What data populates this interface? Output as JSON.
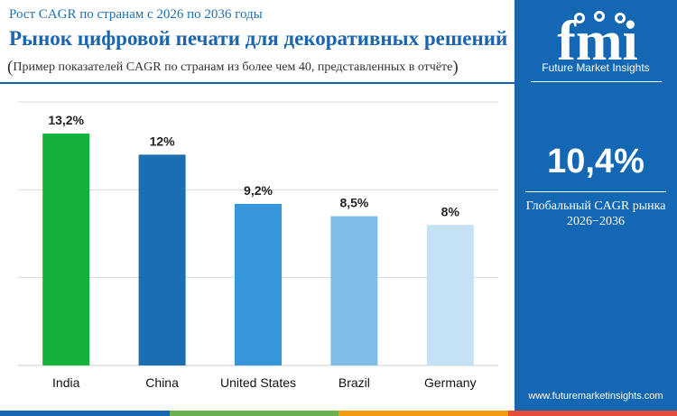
{
  "header": {
    "subtitle": "Рост CAGR по странам с 2026 по 2036 годы",
    "title": "Рынок цифровой печати для декоративных решений",
    "note": "Пример показателей CAGR по странам из более чем 40, представленных в отчёте"
  },
  "chart_data": {
    "type": "bar",
    "categories": [
      "India",
      "China",
      "United States",
      "Brazil",
      "Germany"
    ],
    "values": [
      13.2,
      12.0,
      9.2,
      8.5,
      8.0
    ],
    "data_labels": [
      "13,2%",
      "12%",
      "9,2%",
      "8,5%",
      "8%"
    ],
    "colors": [
      "#14b23d",
      "#1b6fb0",
      "#3597d9",
      "#7fbde6",
      "#c5e2f4"
    ],
    "ylim": [
      0,
      15
    ],
    "grid": true,
    "legend": "none",
    "title": "",
    "xlabel": "",
    "ylabel": ""
  },
  "sidebar": {
    "logo_text": "fmi",
    "logo_tagline": "Future Market Insights",
    "big_value": "10,4%",
    "label": "Глобальный CAGR рынка",
    "period": "2026−2036",
    "website": "www.futuremarketinsights.com"
  },
  "colors": {
    "accent": "#1a64b0",
    "sidebar_bg": "#1468b3",
    "bottom_bar": [
      "#1468b3",
      "#6ab04c",
      "#f39c12",
      "#e74c3c"
    ]
  }
}
